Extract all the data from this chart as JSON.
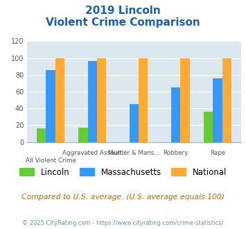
{
  "title_line1": "2019 Lincoln",
  "title_line2": "Violent Crime Comparison",
  "categories": [
    "All Violent Crime",
    "Aggravated Assault",
    "Murder & Mans...",
    "Robbery",
    "Rape"
  ],
  "lincoln": [
    16,
    17,
    0,
    0,
    36
  ],
  "massachusetts": [
    86,
    96,
    45,
    65,
    76
  ],
  "national": [
    100,
    100,
    100,
    100,
    100
  ],
  "lincoln_color": "#66cc33",
  "massachusetts_color": "#3399ff",
  "national_color": "#ffaa33",
  "ylim": [
    0,
    120
  ],
  "yticks": [
    0,
    20,
    40,
    60,
    80,
    100,
    120
  ],
  "bg_color": "#dce8f0",
  "title_color": "#1a5fa8",
  "footer_text": "Compared to U.S. average. (U.S. average equals 100)",
  "copyright_text": "© 2025 CityRating.com - https://www.cityrating.com/crime-statistics/",
  "legend_labels": [
    "Lincoln",
    "Massachusetts",
    "National"
  ],
  "top_labels": [
    "",
    "Aggravated Assault",
    "Murder & Mans...",
    "Robbery",
    "Rape"
  ],
  "bot_labels": [
    "All Violent Crime",
    "",
    "",
    "",
    ""
  ]
}
